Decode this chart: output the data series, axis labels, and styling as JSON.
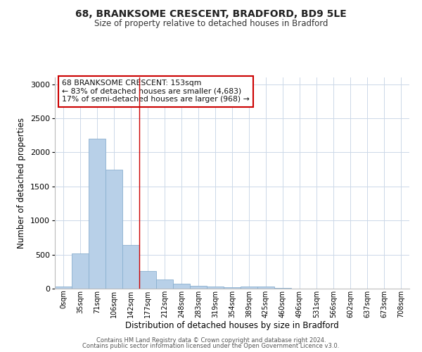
{
  "title_line1": "68, BRANKSOME CRESCENT, BRADFORD, BD9 5LE",
  "title_line2": "Size of property relative to detached houses in Bradford",
  "xlabel": "Distribution of detached houses by size in Bradford",
  "ylabel": "Number of detached properties",
  "categories": [
    "0sqm",
    "35sqm",
    "71sqm",
    "106sqm",
    "142sqm",
    "177sqm",
    "212sqm",
    "248sqm",
    "283sqm",
    "319sqm",
    "354sqm",
    "389sqm",
    "425sqm",
    "460sqm",
    "496sqm",
    "531sqm",
    "566sqm",
    "602sqm",
    "637sqm",
    "673sqm",
    "708sqm"
  ],
  "values": [
    35,
    520,
    2200,
    1750,
    640,
    260,
    130,
    75,
    45,
    30,
    20,
    30,
    30,
    10,
    5,
    0,
    0,
    0,
    0,
    0,
    0
  ],
  "bar_color": "#b8d0e8",
  "bar_edge_color": "#8ab0d0",
  "ylim": [
    0,
    3100
  ],
  "yticks": [
    0,
    500,
    1000,
    1500,
    2000,
    2500,
    3000
  ],
  "red_line_x": 4.5,
  "annotation_text": "68 BRANKSOME CRESCENT: 153sqm\n← 83% of detached houses are smaller (4,683)\n17% of semi-detached houses are larger (968) →",
  "annotation_box_color": "#ffffff",
  "annotation_border_color": "#cc0000",
  "footer_line1": "Contains HM Land Registry data © Crown copyright and database right 2024.",
  "footer_line2": "Contains public sector information licensed under the Open Government Licence v3.0.",
  "background_color": "#ffffff",
  "grid_color": "#ccd8e8"
}
